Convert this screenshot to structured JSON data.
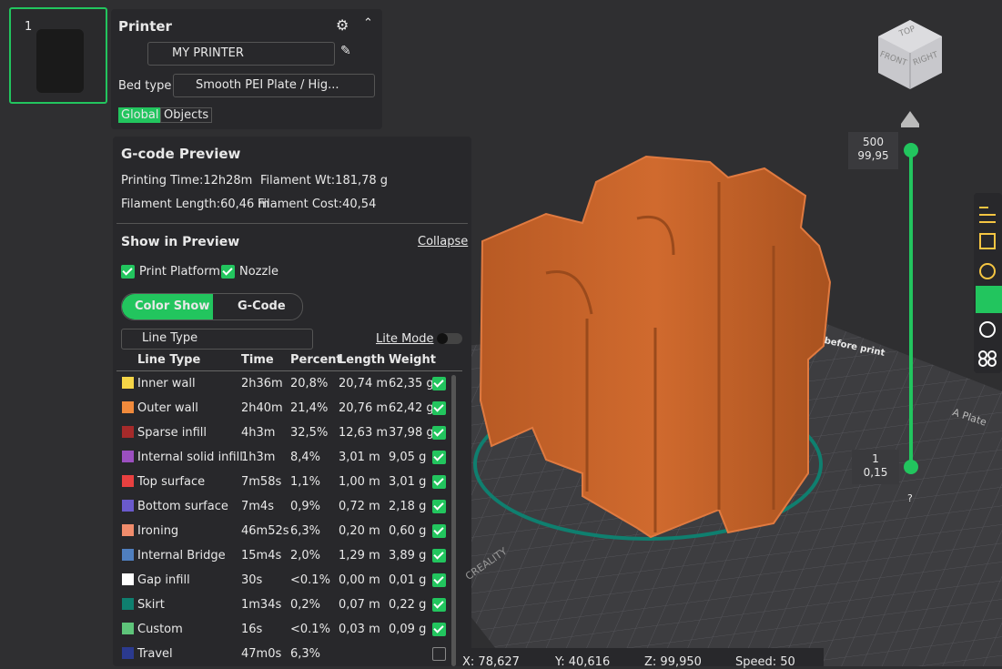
{
  "thumbnail": {
    "index": "1"
  },
  "printer_panel": {
    "title": "Printer",
    "printer_name": "MY PRINTER",
    "bed_type_label": "Bed type",
    "bed_type_value": "Smooth PEI Plate / Hig...",
    "tabs": [
      "Global",
      "Objects"
    ]
  },
  "gcode_preview": {
    "title": "G-code Preview",
    "printing_time": "Printing Time:12h28m",
    "filament_weight": "Filament Wt:181,78 g",
    "filament_length": "Filament Length:60,46 m",
    "filament_cost": "Filament Cost:40,54"
  },
  "show_in_preview": {
    "title": "Show in Preview",
    "collapse": "Collapse",
    "checkboxes": [
      {
        "label": "Print Platform",
        "checked": true
      },
      {
        "label": "Nozzle",
        "checked": true
      }
    ],
    "modes": [
      "Color Show",
      "G-Code"
    ],
    "dropdown": "Line Type",
    "lite_mode": "Lite Mode"
  },
  "table": {
    "headers": [
      "Line Type",
      "Time",
      "Percent",
      "Length",
      "Weight"
    ],
    "rows": [
      {
        "color": "#f5d547",
        "name": "Inner wall",
        "time": "2h36m",
        "percent": "20,8%",
        "length": "20,74 m",
        "weight": "62,35 g",
        "checked": true
      },
      {
        "color": "#f08a3c",
        "name": "Outer wall",
        "time": "2h40m",
        "percent": "21,4%",
        "length": "20,76 m",
        "weight": "62,42 g",
        "checked": true
      },
      {
        "color": "#a52a2a",
        "name": "Sparse infill",
        "time": "4h3m",
        "percent": "32,5%",
        "length": "12,63 m",
        "weight": "37,98 g",
        "checked": true
      },
      {
        "color": "#9b4fc0",
        "name": "Internal solid infill",
        "time": "1h3m",
        "percent": "8,4%",
        "length": "3,01 m",
        "weight": "9,05 g",
        "checked": true
      },
      {
        "color": "#e84040",
        "name": "Top surface",
        "time": "7m58s",
        "percent": "1,1%",
        "length": "1,00 m",
        "weight": "3,01 g",
        "checked": true
      },
      {
        "color": "#6a5acd",
        "name": "Bottom surface",
        "time": "7m4s",
        "percent": "0,9%",
        "length": "0,72 m",
        "weight": "2,18 g",
        "checked": true
      },
      {
        "color": "#f08c6c",
        "name": "Ironing",
        "time": "46m52s",
        "percent": "6,3%",
        "length": "0,20 m",
        "weight": "0,60 g",
        "checked": true
      },
      {
        "color": "#4f7fbf",
        "name": "Internal Bridge",
        "time": "15m4s",
        "percent": "2,0%",
        "length": "1,29 m",
        "weight": "3,89 g",
        "checked": true
      },
      {
        "color": "#ffffff",
        "name": "Gap infill",
        "time": "30s",
        "percent": "<0.1%",
        "length": "0,00 m",
        "weight": "0,01 g",
        "checked": true
      },
      {
        "color": "#0f7f6f",
        "name": "Skirt",
        "time": "1m34s",
        "percent": "0,2%",
        "length": "0,07 m",
        "weight": "0,22 g",
        "checked": true
      },
      {
        "color": "#5ec47a",
        "name": "Custom",
        "time": "16s",
        "percent": "<0.1%",
        "length": "0,03 m",
        "weight": "0,09 g",
        "checked": true
      },
      {
        "color": "#2b3a8f",
        "name": "Travel",
        "time": "47m0s",
        "percent": "6,3%",
        "checked": false
      }
    ]
  },
  "layer_slider": {
    "top_layer": "500",
    "top_height": "99,95",
    "bottom_layer": "1",
    "bottom_height": "0,15",
    "help": "?"
  },
  "view_cube": {
    "top": "TOP",
    "front": "FRONT",
    "right": "RIGHT"
  },
  "plate": {
    "label": "A Plate",
    "note": "before print",
    "brand": "CREALITY"
  },
  "status_bar": {
    "x": "X: 78,627",
    "y": "Y: 40,616",
    "z": "Z: 99,950",
    "speed": "Speed: 50"
  }
}
